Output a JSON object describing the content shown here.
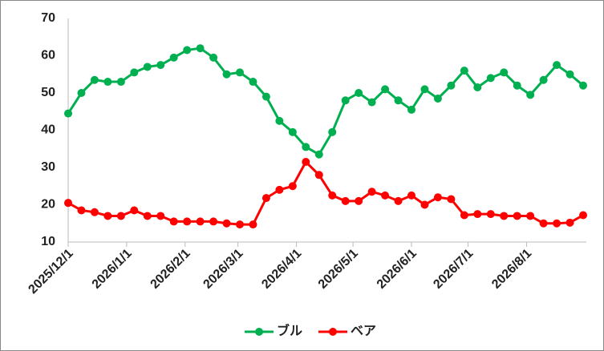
{
  "chart_data": {
    "type": "line",
    "x": [
      "2025/12/1",
      "2025/12/8",
      "2025/12/15",
      "2025/12/22",
      "2025/12/29",
      "2026/1/5",
      "2026/1/12",
      "2026/1/19",
      "2026/1/26",
      "2026/2/2",
      "2026/2/9",
      "2026/2/16",
      "2026/2/23",
      "2026/3/2",
      "2026/3/9",
      "2026/3/16",
      "2026/3/23",
      "2026/3/30",
      "2026/4/6",
      "2026/4/13",
      "2026/4/20",
      "2026/4/27",
      "2026/5/4",
      "2026/5/11",
      "2026/5/18",
      "2026/5/25",
      "2026/6/1",
      "2026/6/8",
      "2026/6/15",
      "2026/6/22",
      "2026/6/29",
      "2026/7/6",
      "2026/7/13",
      "2026/7/20",
      "2026/7/27",
      "2026/8/3",
      "2026/8/10",
      "2026/8/17",
      "2026/8/24",
      "2026/8/31"
    ],
    "series": [
      {
        "name": "ブル",
        "color": "#00b050",
        "values": [
          44.5,
          50,
          53.5,
          53,
          53,
          55.5,
          57,
          57.5,
          59.5,
          61.5,
          62,
          59.5,
          55,
          55.5,
          53,
          49,
          42.5,
          39.5,
          35.5,
          33.5,
          39.5,
          48,
          50,
          47.5,
          51,
          48,
          45.5,
          51,
          48.5,
          52,
          56,
          51.5,
          54,
          55.5,
          52,
          49.5,
          53.5,
          57.5,
          55,
          52
        ]
      },
      {
        "name": "ベア",
        "color": "#ff0000",
        "values": [
          20.5,
          18.5,
          18,
          17,
          17,
          18.5,
          17,
          17,
          15.5,
          15.5,
          15.5,
          15.5,
          15,
          14.7,
          14.7,
          21.8,
          24,
          25,
          31.5,
          28,
          22.5,
          21,
          21,
          23.5,
          22.5,
          21,
          22.5,
          20,
          22,
          21.5,
          17.2,
          17.5,
          17.5,
          17,
          17,
          17,
          15,
          15,
          15.2,
          17.2
        ]
      }
    ],
    "xlim": [
      "2025/12/1",
      "2026/8/31"
    ],
    "xticks": [
      "2025/12/1",
      "2026/1/1",
      "2026/2/1",
      "2026/3/1",
      "2026/4/1",
      "2026/5/1",
      "2026/6/1",
      "2026/7/1",
      "2026/8/1"
    ],
    "ylim": [
      10,
      70
    ],
    "yticks": [
      10,
      20,
      30,
      40,
      50,
      60,
      70
    ],
    "legend": "bottom"
  }
}
